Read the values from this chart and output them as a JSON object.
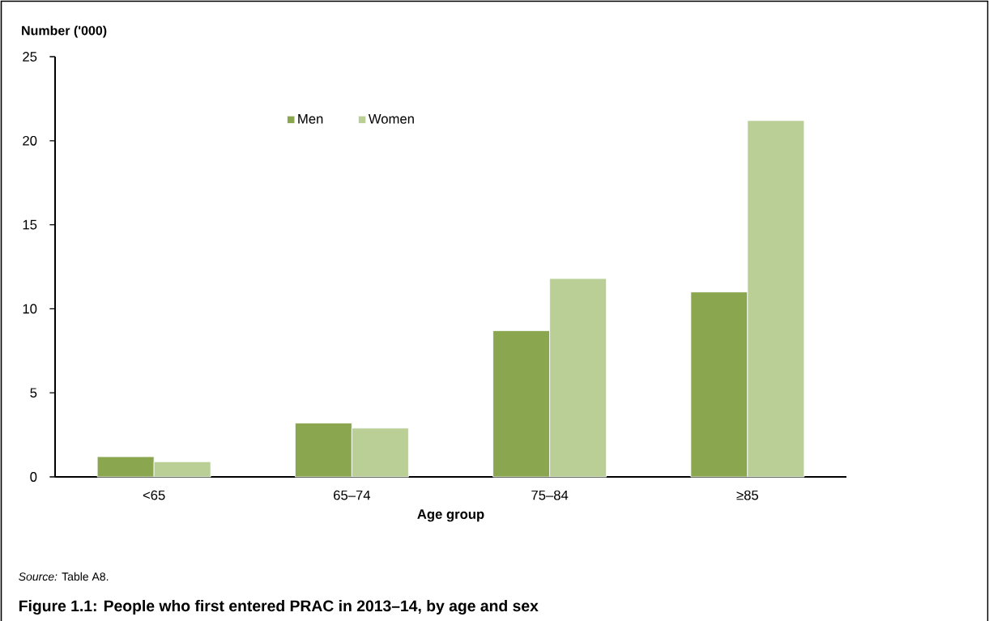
{
  "chart_data": {
    "type": "bar",
    "title": "Figure 1.1: People who first entered PRAC in 2013–14, by age and sex",
    "xlabel": "Age group",
    "ylabel": "Number ('000)",
    "annotations": [
      "*Source:* Table A8."
    ],
    "categories": [
      "<65",
      "65–74",
      "75–84",
      "≥85"
    ],
    "series": [
      {
        "name": "Men",
        "color": "#8aa64f",
        "values": [
          1.2,
          3.2,
          8.7,
          11.0
        ]
      },
      {
        "name": "Women",
        "color": "#b9cf96",
        "values": [
          0.9,
          2.9,
          11.8,
          21.2
        ]
      }
    ],
    "ylim": [
      0,
      25
    ],
    "yticks": [
      0,
      5,
      10,
      15,
      20,
      25
    ],
    "legend": "top"
  }
}
